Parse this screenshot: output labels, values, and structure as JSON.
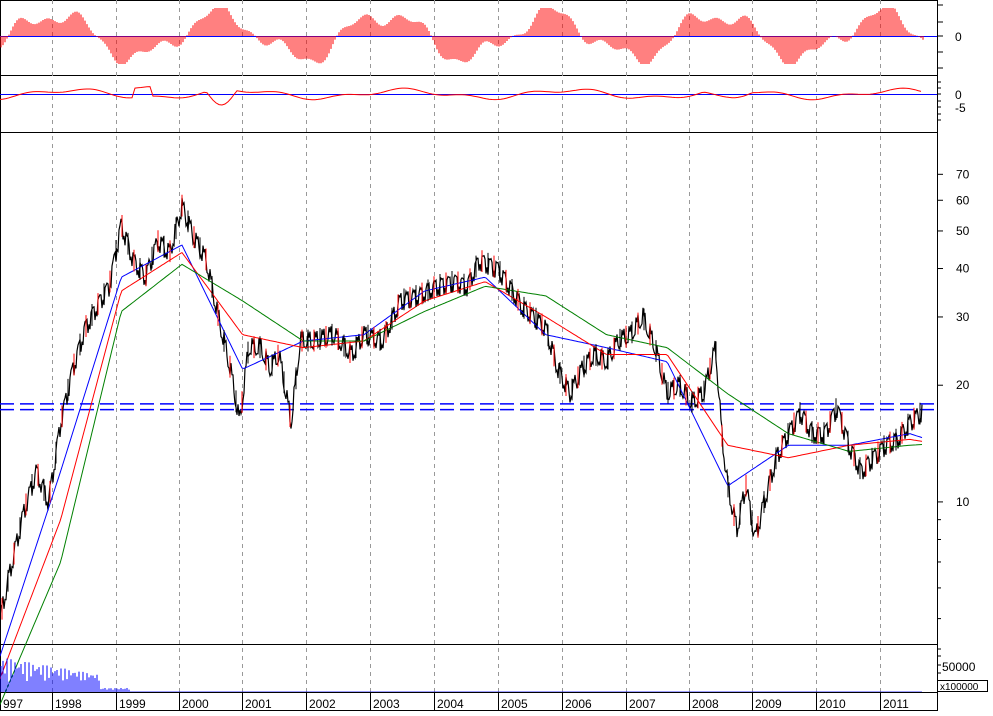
{
  "chart_data": [
    {
      "type": "bar",
      "panel": "oscillator-histogram",
      "ytick_labels": [
        "0"
      ],
      "color": "#ff0000",
      "zero_line_color": "#0000ff"
    },
    {
      "type": "line",
      "panel": "momentum-lines",
      "ytick_labels": [
        "0",
        "-5"
      ],
      "line_color": "#ff0000",
      "signal_color": "#0000ff"
    },
    {
      "type": "line",
      "panel": "price",
      "y_scale": "log",
      "ylim": [
        4.3,
        90
      ],
      "ytick_labels": [
        "70",
        "60",
        "50",
        "40",
        "30",
        "20",
        "10"
      ],
      "series": [
        {
          "values": [
            [
              1997.0,
              5.0
            ],
            [
              1997.2,
              7.0
            ],
            [
              1997.4,
              9.5
            ],
            [
              1997.6,
              12.0
            ],
            [
              1997.8,
              10.0
            ],
            [
              1998.0,
              16.0
            ],
            [
              1998.2,
              22.0
            ],
            [
              1998.4,
              28.0
            ],
            [
              1998.6,
              32.0
            ],
            [
              1998.8,
              36.0
            ],
            [
              1999.0,
              52.0
            ],
            [
              1999.2,
              42.0
            ],
            [
              1999.4,
              38.0
            ],
            [
              1999.6,
              47.0
            ],
            [
              1999.8,
              44.0
            ],
            [
              2000.0,
              58.0
            ],
            [
              2000.2,
              48.0
            ],
            [
              2000.4,
              42.0
            ],
            [
              2000.6,
              30.0
            ],
            [
              2000.8,
              22.0
            ],
            [
              2000.95,
              16.0
            ],
            [
              2001.1,
              25.0
            ],
            [
              2001.3,
              25.0
            ],
            [
              2001.45,
              22.0
            ],
            [
              2001.6,
              24.0
            ],
            [
              2001.8,
              16.0
            ],
            [
              2001.95,
              26.0
            ],
            [
              2002.2,
              26.0
            ],
            [
              2002.5,
              27.0
            ],
            [
              2002.8,
              24.0
            ],
            [
              2003.0,
              27.0
            ],
            [
              2003.3,
              26.0
            ],
            [
              2003.6,
              33.0
            ],
            [
              2003.9,
              34.0
            ],
            [
              2004.2,
              36.0
            ],
            [
              2004.5,
              37.0
            ],
            [
              2004.7,
              36.0
            ],
            [
              2004.9,
              42.0
            ],
            [
              2005.2,
              40.0
            ],
            [
              2005.4,
              36.0
            ],
            [
              2005.6,
              32.0
            ],
            [
              2005.8,
              30.0
            ],
            [
              2006.0,
              28.0
            ],
            [
              2006.2,
              22.0
            ],
            [
              2006.4,
              19.0
            ],
            [
              2006.6,
              22.0
            ],
            [
              2006.8,
              24.0
            ],
            [
              2007.0,
              23.0
            ],
            [
              2007.2,
              26.0
            ],
            [
              2007.4,
              27.0
            ],
            [
              2007.6,
              30.0
            ],
            [
              2007.8,
              25.0
            ],
            [
              2008.0,
              19.0
            ],
            [
              2008.2,
              20.0
            ],
            [
              2008.4,
              18.0
            ],
            [
              2008.6,
              19.0
            ],
            [
              2008.8,
              25.0
            ],
            [
              2008.9,
              15.0
            ],
            [
              2009.0,
              11.0
            ],
            [
              2009.15,
              8.5
            ],
            [
              2009.3,
              11.0
            ],
            [
              2009.45,
              8.0
            ],
            [
              2009.6,
              10.0
            ],
            [
              2009.8,
              13.0
            ],
            [
              2010.0,
              15.0
            ],
            [
              2010.2,
              17.0
            ],
            [
              2010.4,
              15.0
            ],
            [
              2010.6,
              15.0
            ],
            [
              2010.8,
              17.5
            ],
            [
              2011.0,
              14.0
            ],
            [
              2011.2,
              12.0
            ],
            [
              2011.4,
              13.0
            ],
            [
              2011.6,
              14.0
            ],
            [
              2011.8,
              14.5
            ],
            [
              2012.0,
              16.0
            ],
            [
              2012.2,
              17.0
            ],
            [
              2012.4,
              16.0
            ],
            [
              2012.6,
              13.5
            ]
          ],
          "color": "#000000"
        },
        {
          "values": [
            [
              1997.0,
              4.0
            ],
            [
              1998.0,
              12.0
            ],
            [
              1999.0,
              38.0
            ],
            [
              2000.0,
              46.0
            ],
            [
              2001.0,
              22.0
            ],
            [
              2002.0,
              26.0
            ],
            [
              2003.0,
              27.0
            ],
            [
              2004.0,
              35.0
            ],
            [
              2005.0,
              38.0
            ],
            [
              2006.0,
              27.0
            ],
            [
              2007.0,
              25.0
            ],
            [
              2008.0,
              23.0
            ],
            [
              2009.0,
              11.0
            ],
            [
              2010.0,
              14.0
            ],
            [
              2011.0,
              14.0
            ],
            [
              2012.0,
              15.0
            ],
            [
              2012.6,
              14.0
            ]
          ],
          "color": "#0000ff"
        },
        {
          "values": [
            [
              1997.0,
              3.5
            ],
            [
              1998.0,
              9.0
            ],
            [
              1999.0,
              35.0
            ],
            [
              2000.0,
              44.0
            ],
            [
              2001.0,
              27.0
            ],
            [
              2002.0,
              25.0
            ],
            [
              2003.0,
              26.0
            ],
            [
              2004.0,
              33.0
            ],
            [
              2005.0,
              37.0
            ],
            [
              2006.0,
              30.0
            ],
            [
              2007.0,
              24.0
            ],
            [
              2008.0,
              24.0
            ],
            [
              2009.0,
              14.0
            ],
            [
              2010.0,
              13.0
            ],
            [
              2011.0,
              14.0
            ],
            [
              2012.0,
              14.5
            ],
            [
              2012.6,
              14.0
            ]
          ],
          "color": "#ff0000"
        },
        {
          "values": [
            [
              1997.0,
              3.0
            ],
            [
              1998.0,
              7.0
            ],
            [
              1999.0,
              31.0
            ],
            [
              2000.0,
              41.0
            ],
            [
              2001.0,
              33.0
            ],
            [
              2002.0,
              26.0
            ],
            [
              2003.0,
              26.0
            ],
            [
              2004.0,
              31.0
            ],
            [
              2005.0,
              36.0
            ],
            [
              2006.0,
              34.0
            ],
            [
              2007.0,
              27.0
            ],
            [
              2008.0,
              25.0
            ],
            [
              2009.0,
              19.0
            ],
            [
              2010.0,
              15.0
            ],
            [
              2011.0,
              13.5
            ],
            [
              2012.0,
              14.0
            ],
            [
              2012.6,
              14.2
            ]
          ],
          "color": "#008000"
        }
      ],
      "hlines": [
        {
          "y": 17.9,
          "color": "#0000ff",
          "style": "dashed"
        },
        {
          "y": 17.3,
          "color": "#0000ff",
          "style": "dashed"
        }
      ]
    },
    {
      "type": "bar",
      "panel": "volume",
      "ytick_labels": [
        "50000"
      ],
      "unit_label": "x100000",
      "color": "#0000ff"
    }
  ],
  "x_axis": {
    "labels": [
      "997",
      "1998",
      "1999",
      "2000",
      "2001",
      "2002",
      "2003",
      "2004",
      "2005",
      "2006",
      "2007",
      "2008",
      "2009",
      "2010",
      "2011"
    ],
    "grid": true
  },
  "colors": {
    "grid": "#999999",
    "frame": "#000000",
    "background": "#ffffff"
  }
}
